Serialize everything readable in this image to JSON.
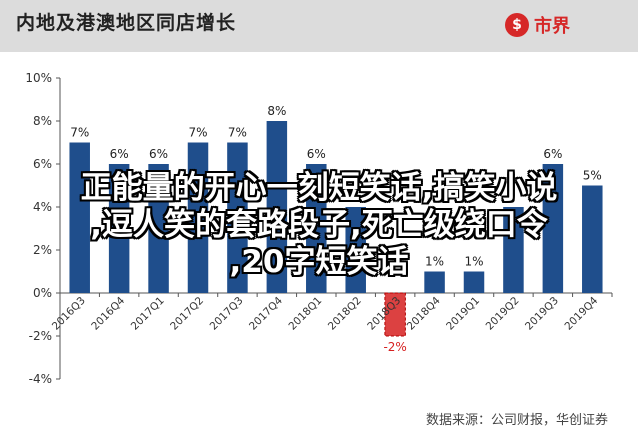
{
  "header": {
    "title": "内地及港澳地区同店增长",
    "logo_mark": "$",
    "logo_text": "市界"
  },
  "source": "数据来源：公司财报，华创证券",
  "overlay": {
    "line1": "正能量的开心一刻短笑话,搞笑小说",
    "line2": ",逗人笑的套路段子,死亡级绕口令",
    "line3": ",20字短笑话"
  },
  "colors": {
    "bar": "#1f4e8c",
    "bar_negative": "#d62020",
    "negative_label": "#d62020",
    "header_bg": "#dcdcdc"
  },
  "chart_data": {
    "type": "bar",
    "title": "",
    "xlabel": "",
    "ylabel": "",
    "categories": [
      "2016Q3",
      "2016Q4",
      "2017Q1",
      "2017Q2",
      "2017Q3",
      "2017Q4",
      "2018Q1",
      "2018Q2",
      "2018Q3",
      "2018Q4",
      "2019Q1",
      "2019Q2",
      "2019Q3",
      "2019Q4"
    ],
    "values": [
      7,
      6,
      6,
      7,
      7,
      8,
      6,
      4,
      -2,
      1,
      1,
      4,
      6,
      5
    ],
    "value_labels": [
      "7%",
      "6%",
      "6%",
      "7%",
      "7%",
      "8%",
      "6%",
      "",
      "-2%",
      "1%",
      "1%",
      "",
      "6%",
      "5%"
    ],
    "ylim": [
      -4,
      10
    ],
    "yticks": [
      -4,
      -2,
      0,
      2,
      4,
      6,
      8,
      10
    ],
    "ytick_labels": [
      "-4%",
      "-2%",
      "0%",
      "2%",
      "4%",
      "6%",
      "8%",
      "10%"
    ],
    "grid": false,
    "legend": "none"
  }
}
